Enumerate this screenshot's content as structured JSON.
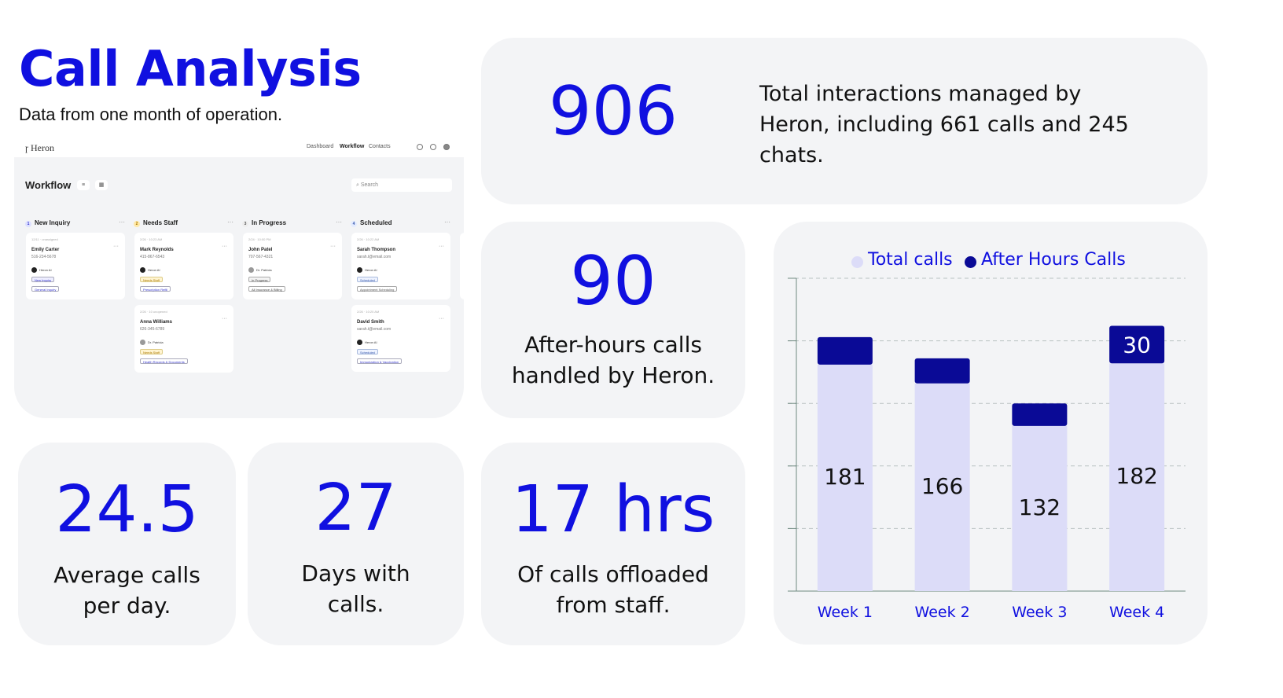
{
  "header": {
    "title": "Call Analysis",
    "subtitle": "Data from one month of operation."
  },
  "app": {
    "logo": "Heron",
    "nav": [
      "Dashboard",
      "Workflow",
      "Contacts"
    ],
    "page_title": "Workflow",
    "search_placeholder": "Search",
    "columns": [
      {
        "num": "1",
        "title": "New Inquiry"
      },
      {
        "num": "2",
        "title": "Needs Staff"
      },
      {
        "num": "3",
        "title": "In Progress"
      },
      {
        "num": "4",
        "title": "Scheduled"
      }
    ],
    "cards": [
      {
        "meta": "12/11 · unassigned",
        "name": "Emily Carter",
        "phone": "516-234-5678",
        "agent": "Heron AI",
        "tag1": "New Inquiry",
        "tag2": "General Inquiry"
      },
      {
        "meta": "2/26 · 10:23 AM",
        "name": "Mark Reynolds",
        "phone": "415-867-6543",
        "agent": "Heron AI",
        "tag1": "Needs Staff",
        "tag2": "Prescription Refill"
      },
      {
        "meta": "2/24 · 10:00 PM",
        "name": "John Patel",
        "phone": "707-567-4321",
        "agent": "Dr. Patricia",
        "tag1": "In Progress",
        "tag2": "All Insurance & Billing"
      },
      {
        "meta": "2/26 · 10:22 AM",
        "name": "Sarah Thompson",
        "phone": "sarah.t@email.com",
        "agent": "Heron AI",
        "tag1": "Scheduled",
        "tag2": "Appointment Scheduling"
      },
      {
        "meta": "2/26 · 10 unopened",
        "name": "Anna Williams",
        "phone": "626-345-6789",
        "agent": "Dr. Patricia",
        "tag1": "Needs Staff",
        "tag2": "Health Records & Documents"
      },
      {
        "meta": "2/26 · 10:20 AM",
        "name": "David Smith",
        "phone": "sarah.t@email.com",
        "agent": "Heron AI",
        "tag1": "Scheduled",
        "tag2": "Immunization & Vaccination"
      }
    ]
  },
  "stats": {
    "total": {
      "value": "906",
      "caption": "Total interactions managed by Heron, including 661 calls and 245 chats."
    },
    "after_hours": {
      "value": "90",
      "line1": "After-hours calls",
      "line2": "handled by Heron."
    },
    "avg": {
      "value": "24.5",
      "line1": "Average calls",
      "line2": "per day."
    },
    "days": {
      "value": "27",
      "line1": "Days with",
      "line2": "calls."
    },
    "offload": {
      "value": "17 hrs",
      "line1": "Of calls offloaded",
      "line2": "from staff."
    }
  },
  "colors": {
    "accent": "#1010e0",
    "total_calls": "#dcdcf8",
    "after_hours_calls": "#0a0a96",
    "card_bg": "#f3f4f6"
  },
  "chart_data": {
    "type": "bar",
    "stacked": true,
    "categories": [
      "Week 1",
      "Week 2",
      "Week 3",
      "Week 4"
    ],
    "series": [
      {
        "name": "Total calls",
        "values": [
          181,
          166,
          132,
          182
        ],
        "labels": [
          "181",
          "166",
          "132",
          "182"
        ]
      },
      {
        "name": "After Hours Calls",
        "values": [
          22,
          20,
          18,
          30
        ],
        "labels": [
          "",
          "",
          "",
          "30"
        ]
      }
    ],
    "legend_position": "top",
    "grid": true,
    "ylim": [
      0,
      250
    ]
  }
}
